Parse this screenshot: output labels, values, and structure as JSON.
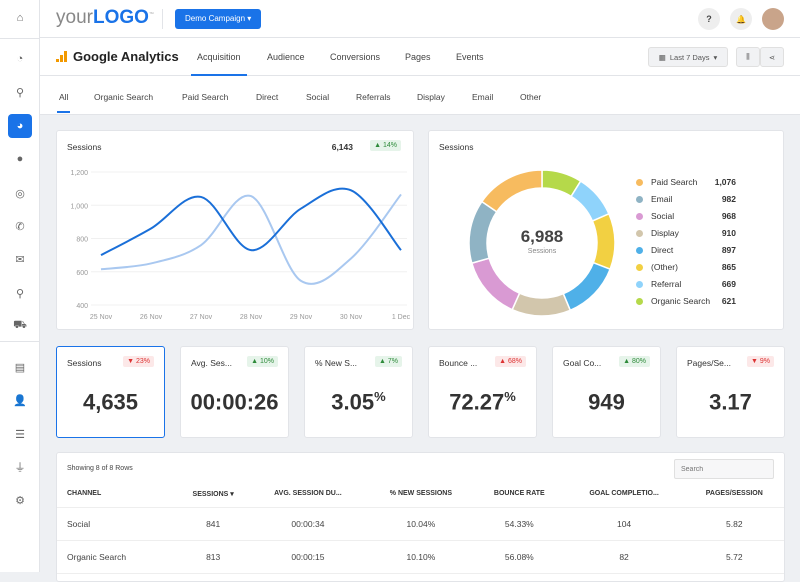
{
  "sidebar": {
    "items": [
      {
        "icon": "home-icon"
      },
      {
        "icon": "dashboard-icon"
      },
      {
        "icon": "search-icon"
      },
      {
        "icon": "pie-chart-icon",
        "active": true
      },
      {
        "icon": "chat-icon"
      },
      {
        "icon": "target-icon"
      },
      {
        "icon": "phone-icon"
      },
      {
        "icon": "mail-icon"
      },
      {
        "icon": "map-pin-icon"
      },
      {
        "icon": "cart-icon"
      },
      {
        "icon": "report-icon"
      },
      {
        "icon": "user-icon"
      },
      {
        "icon": "list-icon"
      },
      {
        "icon": "plug-icon"
      },
      {
        "icon": "settings-icon"
      }
    ]
  },
  "header": {
    "logo_your": "your",
    "logo_logo": "LOGO",
    "logo_tm": "™",
    "campaign": "Demo Campaign ▾",
    "help": "?",
    "bell": "🔔"
  },
  "tabbar": {
    "title": "Google Analytics",
    "tabs": [
      "Acquisition",
      "Audience",
      "Conversions",
      "Pages",
      "Events"
    ],
    "active": 0,
    "date_range": "Last 7 Days"
  },
  "subtabs": {
    "items": [
      "All",
      "Organic Search",
      "Paid Search",
      "Direct",
      "Social",
      "Referrals",
      "Display",
      "Email",
      "Other"
    ],
    "active": 0
  },
  "colors": {
    "accent": "#1a73e8",
    "line_primary": "#1a6fd8",
    "line_secondary": "#a9c8f0"
  },
  "line_card": {
    "title": "Sessions",
    "total": "6,143",
    "change": "▲ 14%"
  },
  "donut_card": {
    "title": "Sessions",
    "total": "6,988",
    "total_label": "Sessions"
  },
  "chart_data": [
    {
      "type": "line",
      "x": [
        "25 Nov",
        "26 Nov",
        "27 Nov",
        "28 Nov",
        "29 Nov",
        "30 Nov",
        "1 Dec"
      ],
      "ylim": [
        400,
        1200
      ],
      "yticks": [
        "1,200",
        "1,000",
        "800",
        "600",
        "400"
      ],
      "ytick_values": [
        1200,
        1000,
        800,
        600,
        400
      ],
      "grid": true,
      "series": [
        {
          "values": [
            700,
            860,
            1050,
            730,
            980,
            1090,
            730
          ],
          "color": "#1a6fd8"
        },
        {
          "values": [
            615,
            650,
            760,
            1055,
            545,
            680,
            1065
          ],
          "color": "#a9c8f0"
        }
      ]
    },
    {
      "type": "pie",
      "donut": true,
      "slices": [
        {
          "label": "Paid Search",
          "value": 1076,
          "display": "1,076",
          "color": "#f7bb5f"
        },
        {
          "label": "Email",
          "value": 982,
          "display": "982",
          "color": "#8fb3c4"
        },
        {
          "label": "Social",
          "value": 968,
          "display": "968",
          "color": "#d99ad3"
        },
        {
          "label": "Display",
          "value": 910,
          "display": "910",
          "color": "#d2c6ac"
        },
        {
          "label": "Direct",
          "value": 897,
          "display": "897",
          "color": "#4fb0e8"
        },
        {
          "label": "(Other)",
          "value": 865,
          "display": "865",
          "color": "#f2d042"
        },
        {
          "label": "Referral",
          "value": 669,
          "display": "669",
          "color": "#8fd3fb"
        },
        {
          "label": "Organic Search",
          "value": 621,
          "display": "621",
          "color": "#b5d94a"
        }
      ]
    }
  ],
  "kpis": [
    {
      "label": "Sessions",
      "change": "▼ 23%",
      "dir": "down",
      "value": "4,635",
      "suffix": ""
    },
    {
      "label": "Avg. Ses...",
      "change": "▲ 10%",
      "dir": "up",
      "value": "00:00:26",
      "suffix": ""
    },
    {
      "label": "% New S...",
      "change": "▲ 7%",
      "dir": "up",
      "value": "3.05",
      "suffix": "%"
    },
    {
      "label": "Bounce ...",
      "change": "▲ 68%",
      "dir": "down",
      "value": "72.27",
      "suffix": "%"
    },
    {
      "label": "Goal Co...",
      "change": "▲ 80%",
      "dir": "up",
      "value": "949",
      "suffix": ""
    },
    {
      "label": "Pages/Se...",
      "change": "▼ 9%",
      "dir": "down",
      "value": "3.17",
      "suffix": ""
    }
  ],
  "table": {
    "showing": "Showing 8 of 8 Rows",
    "search_placeholder": "Search",
    "columns": [
      "CHANNEL",
      "SESSIONS ▾",
      "AVG. SESSION DU...",
      "% NEW SESSIONS",
      "BOUNCE RATE",
      "GOAL COMPLETIO...",
      "PAGES/SESSION"
    ],
    "rows": [
      [
        "Social",
        "841",
        "00:00:34",
        "10.04%",
        "54.33%",
        "104",
        "5.82"
      ],
      [
        "Organic Search",
        "813",
        "00:00:15",
        "10.10%",
        "56.08%",
        "82",
        "5.72"
      ]
    ]
  }
}
